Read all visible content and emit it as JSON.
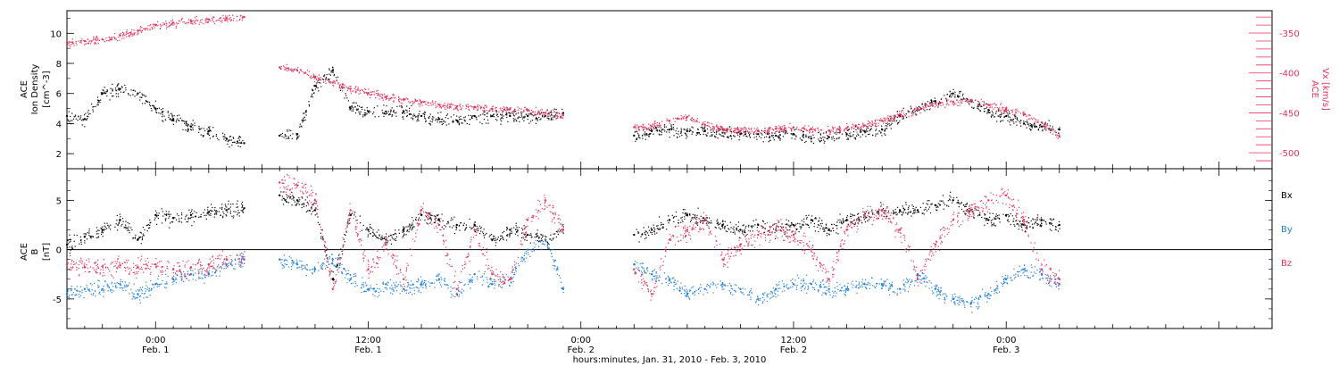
{
  "chart_data": {
    "time_axis": {
      "label": "hours:minutes, Jan. 31, 2010 - Feb.  3, 2010",
      "range_hours": [
        -5,
        63
      ],
      "major_ticks": [
        {
          "hour": 0,
          "time": "0:00",
          "day": "Feb. 1"
        },
        {
          "hour": 12,
          "time": "12:00",
          "day": "Feb. 1"
        },
        {
          "hour": 24,
          "time": "0:00",
          "day": "Feb. 2"
        },
        {
          "hour": 36,
          "time": "12:00",
          "day": "Feb. 2"
        },
        {
          "hour": 48,
          "time": "0:00",
          "day": "Feb. 3"
        }
      ]
    },
    "panels": [
      {
        "type": "scatter",
        "ylabel_left": "ACE\nIon Density\n[cm^-3]",
        "ylabel_right": "ACE\nVx [km/s]",
        "ylim_left": [
          1,
          11.5
        ],
        "yticks_left": [
          2,
          4,
          6,
          8,
          10
        ],
        "ylim_right": [
          -520,
          -322
        ],
        "yticks_right": [
          -350,
          -400,
          -450,
          -500
        ],
        "series": [
          {
            "axis": "left",
            "color": "#000000",
            "segments": [
              {
                "x": [
                  -5,
                  -4,
                  -3,
                  -2,
                  -1,
                  0,
                  1,
                  2,
                  3,
                  4,
                  5
                ],
                "y": [
                  4.5,
                  4.3,
                  6.0,
                  6.3,
                  6.0,
                  5.0,
                  4.3,
                  3.8,
                  3.5,
                  3.0,
                  2.7
                ]
              },
              {
                "x": [
                  7,
                  8,
                  9,
                  10,
                  11,
                  12,
                  13,
                  14,
                  15,
                  16,
                  17,
                  18,
                  19,
                  20,
                  21,
                  22,
                  23
                ],
                "y": [
                  3.2,
                  3.3,
                  6.5,
                  7.5,
                  5.0,
                  4.8,
                  4.8,
                  4.8,
                  4.5,
                  4.3,
                  4.2,
                  4.5,
                  4.5,
                  4.5,
                  4.5,
                  4.5,
                  4.7
                ]
              },
              {
                "x": [
                  27,
                  28,
                  29,
                  30,
                  31,
                  32,
                  33,
                  34,
                  35,
                  36,
                  37,
                  38,
                  39,
                  40,
                  41,
                  42,
                  43,
                  44,
                  45,
                  46,
                  47,
                  48,
                  49,
                  50,
                  51
                ],
                "y": [
                  3.2,
                  3.5,
                  3.6,
                  3.5,
                  3.5,
                  3.4,
                  3.3,
                  3.3,
                  3.2,
                  3.3,
                  3.0,
                  3.1,
                  3.3,
                  3.5,
                  3.6,
                  4.5,
                  5.0,
                  5.5,
                  6.0,
                  5.5,
                  4.9,
                  4.5,
                  4.0,
                  3.8,
                  3.6
                ]
              }
            ]
          },
          {
            "axis": "right",
            "color": "#e8315b",
            "segments": [
              {
                "x": [
                  -5,
                  -4,
                  -3,
                  -2,
                  -1,
                  0,
                  1,
                  2,
                  3,
                  4,
                  5
                ],
                "y": [
                  -362,
                  -360,
                  -358,
                  -353,
                  -347,
                  -340,
                  -337,
                  -335,
                  -333,
                  -331,
                  -330
                ]
              },
              {
                "x": [
                  7,
                  8,
                  9,
                  10,
                  11,
                  12,
                  13,
                  14,
                  15,
                  16,
                  17,
                  18,
                  19,
                  20,
                  21,
                  22,
                  23
                ],
                "y": [
                  -393,
                  -397,
                  -405,
                  -412,
                  -420,
                  -425,
                  -430,
                  -433,
                  -437,
                  -440,
                  -442,
                  -443,
                  -445,
                  -445,
                  -447,
                  -450,
                  -453
                ]
              },
              {
                "x": [
                  27,
                  28,
                  29,
                  30,
                  31,
                  32,
                  33,
                  34,
                  35,
                  36,
                  37,
                  38,
                  39,
                  40,
                  41,
                  42,
                  43,
                  44,
                  45,
                  46,
                  47,
                  48,
                  49,
                  50,
                  51
                ],
                "y": [
                  -468,
                  -467,
                  -460,
                  -455,
                  -465,
                  -470,
                  -472,
                  -472,
                  -470,
                  -468,
                  -470,
                  -472,
                  -469,
                  -466,
                  -460,
                  -452,
                  -445,
                  -438,
                  -436,
                  -434,
                  -440,
                  -445,
                  -452,
                  -462,
                  -480
                ]
              }
            ]
          }
        ]
      },
      {
        "type": "scatter",
        "ylabel_left": "ACE\nB\n[nT]",
        "ylim": [
          -8,
          8.2
        ],
        "yticks": [
          5,
          0,
          -5
        ],
        "zero_line": true,
        "legend": [
          {
            "name": "Bx",
            "color": "#000000"
          },
          {
            "name": "By",
            "color": "#1b7fdc"
          },
          {
            "name": "Bz",
            "color": "#e8315b"
          }
        ],
        "series": [
          {
            "name": "Bx",
            "color": "#000000",
            "segments": [
              {
                "x": [
                  -5,
                  -4,
                  -3,
                  -2,
                  -1,
                  0,
                  1,
                  2,
                  3,
                  4,
                  5
                ],
                "y": [
                  0.5,
                  1.3,
                  2.0,
                  3.0,
                  1.0,
                  3.5,
                  3.2,
                  3.5,
                  3.8,
                  4.0,
                  4.2
                ]
              },
              {
                "x": [
                  7,
                  8,
                  9,
                  10,
                  11,
                  12,
                  13,
                  14,
                  15,
                  16,
                  17,
                  18,
                  19,
                  20,
                  21,
                  22,
                  23
                ],
                "y": [
                  5.5,
                  5.0,
                  4.0,
                  -3.0,
                  3.5,
                  2.0,
                  1.0,
                  2.0,
                  3.5,
                  3.0,
                  2.5,
                  2.5,
                  1.0,
                  2.0,
                  1.5,
                  1.0,
                  2.0
                ]
              },
              {
                "x": [
                  27,
                  28,
                  29,
                  30,
                  31,
                  32,
                  33,
                  34,
                  35,
                  36,
                  37,
                  38,
                  39,
                  40,
                  41,
                  42,
                  43,
                  44,
                  45,
                  46,
                  47,
                  48,
                  49,
                  50,
                  51
                ],
                "y": [
                  1.5,
                  2.0,
                  3.0,
                  3.5,
                  3.0,
                  2.5,
                  2.0,
                  2.5,
                  2.0,
                  2.5,
                  3.0,
                  2.0,
                  3.0,
                  3.5,
                  4.0,
                  4.0,
                  4.0,
                  4.5,
                  5.0,
                  4.0,
                  3.0,
                  3.5,
                  2.5,
                  3.0,
                  2.5
                ]
              }
            ]
          },
          {
            "name": "By",
            "color": "#1b7fdc",
            "segments": [
              {
                "x": [
                  -5,
                  -4,
                  -3,
                  -2,
                  -1,
                  0,
                  1,
                  2,
                  3,
                  4,
                  5
                ],
                "y": [
                  -4.5,
                  -4.0,
                  -4.0,
                  -3.5,
                  -4.5,
                  -3.5,
                  -3.0,
                  -2.5,
                  -2.5,
                  -1.5,
                  -1.0
                ]
              },
              {
                "x": [
                  7,
                  8,
                  9,
                  10,
                  11,
                  12,
                  13,
                  14,
                  15,
                  16,
                  17,
                  18,
                  19,
                  20,
                  21,
                  22,
                  23
                ],
                "y": [
                  -1.0,
                  -1.5,
                  -2.0,
                  -1.0,
                  -3.0,
                  -4.0,
                  -3.5,
                  -4.0,
                  -3.5,
                  -3.0,
                  -4.5,
                  -2.5,
                  -3.5,
                  -3.0,
                  0.0,
                  1.0,
                  -4.0
                ]
              },
              {
                "x": [
                  27,
                  28,
                  29,
                  30,
                  31,
                  32,
                  33,
                  34,
                  35,
                  36,
                  37,
                  38,
                  39,
                  40,
                  41,
                  42,
                  43,
                  44,
                  45,
                  46,
                  47,
                  48,
                  49,
                  50,
                  51
                ],
                "y": [
                  -1.5,
                  -2.5,
                  -3.0,
                  -4.5,
                  -4.0,
                  -3.5,
                  -4.0,
                  -5.0,
                  -4.0,
                  -3.5,
                  -3.5,
                  -4.0,
                  -4.0,
                  -3.5,
                  -3.5,
                  -4.0,
                  -2.5,
                  -4.0,
                  -5.0,
                  -5.5,
                  -4.5,
                  -3.0,
                  -2.0,
                  -2.5,
                  -3.5
                ]
              }
            ]
          },
          {
            "name": "Bz",
            "color": "#e8315b",
            "segments": [
              {
                "x": [
                  -5,
                  -4,
                  -3,
                  -2,
                  -1,
                  0,
                  1,
                  2,
                  3,
                  4,
                  5
                ],
                "y": [
                  -1.5,
                  -1.8,
                  -1.7,
                  -1.6,
                  -1.8,
                  -1.5,
                  -2.0,
                  -1.8,
                  -1.5,
                  -1.0,
                  -1.0
                ]
              },
              {
                "x": [
                  7,
                  8,
                  9,
                  10,
                  11,
                  12,
                  13,
                  14,
                  15,
                  16,
                  17,
                  18,
                  19,
                  20,
                  21,
                  22,
                  23
                ],
                "y": [
                  6.8,
                  6.5,
                  5.0,
                  -4.0,
                  4.0,
                  -2.0,
                  0.5,
                  -3.0,
                  4.0,
                  2.5,
                  -4.0,
                  2.0,
                  -2.5,
                  -3.0,
                  3.0,
                  5.0,
                  2.0
                ]
              },
              {
                "x": [
                  27,
                  28,
                  29,
                  30,
                  31,
                  32,
                  33,
                  34,
                  35,
                  36,
                  37,
                  38,
                  39,
                  40,
                  41,
                  42,
                  43,
                  44,
                  45,
                  46,
                  47,
                  48,
                  49,
                  50,
                  51
                ],
                "y": [
                  -2.0,
                  -4.5,
                  1.0,
                  2.0,
                  3.0,
                  -1.0,
                  0.5,
                  1.5,
                  2.0,
                  1.5,
                  0.0,
                  -3.0,
                  2.0,
                  3.5,
                  4.0,
                  2.0,
                  -3.0,
                  0.5,
                  3.0,
                  4.0,
                  5.0,
                  5.5,
                  3.0,
                  -2.0,
                  -3.0
                ]
              }
            ]
          }
        ]
      }
    ]
  }
}
